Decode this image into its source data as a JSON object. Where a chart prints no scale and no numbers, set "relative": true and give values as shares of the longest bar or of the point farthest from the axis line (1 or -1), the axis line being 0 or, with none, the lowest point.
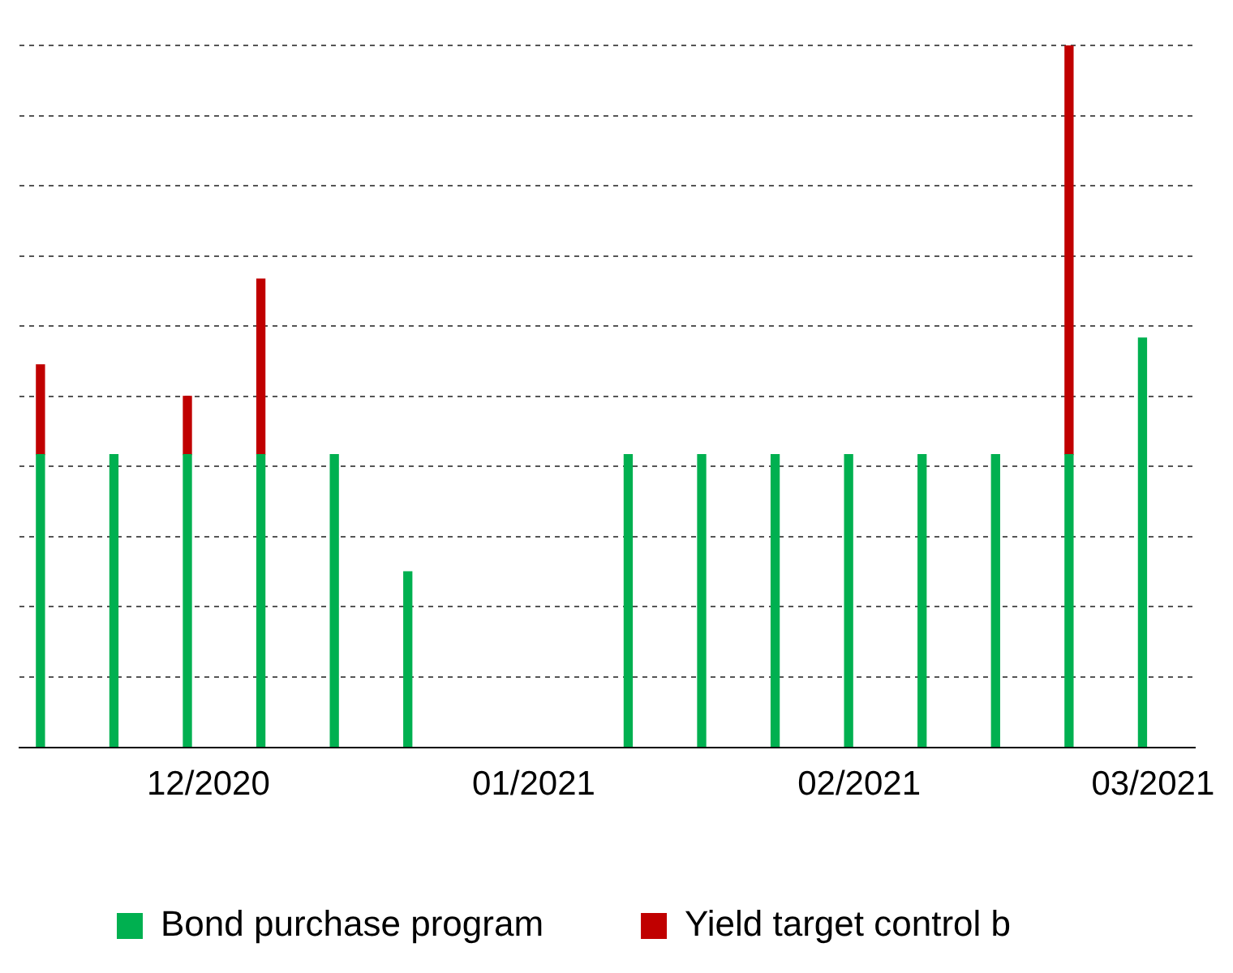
{
  "chart_data": {
    "type": "bar",
    "stacked": true,
    "relative": true,
    "x": [
      "2020-11-15",
      "2020-11-22",
      "2020-11-29",
      "2020-12-06",
      "2020-12-13",
      "2020-12-20",
      "2021-01-10",
      "2021-01-17",
      "2021-01-24",
      "2021-01-31",
      "2021-02-07",
      "2021-02-14",
      "2021-02-21",
      "2021-02-28"
    ],
    "series": [
      {
        "name": "Bond purchase program",
        "color": "#00b050",
        "values": [
          0.417,
          0.417,
          0.417,
          0.417,
          0.417,
          0.25,
          0.417,
          0.417,
          0.417,
          0.417,
          0.417,
          0.417,
          0.417,
          0.583
        ]
      },
      {
        "name": "Yield target control b",
        "color": "#c00000",
        "values": [
          0.128,
          null,
          0.083,
          0.25,
          null,
          null,
          null,
          null,
          null,
          null,
          null,
          null,
          0.583,
          null
        ]
      }
    ],
    "xlim": [
      "2020-11-13",
      "2021-03-05"
    ],
    "xticks": [
      {
        "value": "2020-12-01",
        "label": "12/2020"
      },
      {
        "value": "2021-01-01",
        "label": "01/2021"
      },
      {
        "value": "2021-02-01",
        "label": "02/2021"
      },
      {
        "value": "2021-03-01",
        "label": "03/2021"
      }
    ],
    "grid": "y",
    "legend": "bottom"
  }
}
